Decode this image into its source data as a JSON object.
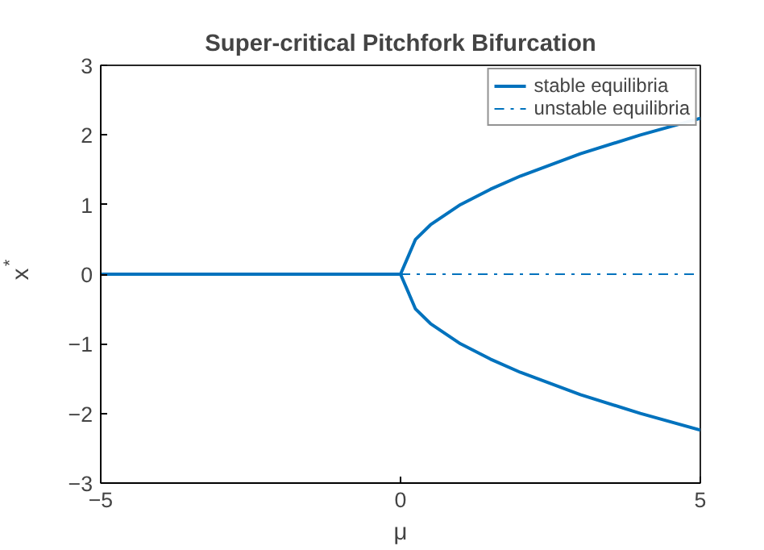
{
  "chart_data": {
    "type": "line",
    "title": "Super-critical Pitchfork Bifurcation",
    "xlabel": "μ",
    "ylabel": "x$^{*}$",
    "series": [
      {
        "name": "stable equilibria",
        "color": "#0072bd",
        "line_style": "solid",
        "x": [
          5,
          4,
          3,
          2,
          1.5,
          1,
          0.5,
          0.25,
          0,
          -5
        ],
        "values": [
          -2.24,
          -2,
          -1.73,
          -1.41,
          -1.22,
          -1,
          -0.71,
          -0.5,
          0,
          0
        ]
      },
      {
        "color": "#0072bd",
        "line_style": "solid",
        "x": [
          0,
          0.25,
          0.5,
          1,
          1.5,
          2,
          3,
          4,
          5
        ],
        "values": [
          0,
          0.5,
          0.71,
          1,
          1.22,
          1.41,
          1.73,
          2,
          2.24
        ]
      },
      {
        "name": "unstable equilibria",
        "color": "#0072bd",
        "line_style": "dashdot",
        "x": [
          0,
          5
        ],
        "values": [
          0,
          0
        ]
      }
    ],
    "xlim": [
      -5,
      5
    ],
    "xticks": [
      -5,
      0,
      5
    ],
    "ylim": [
      -3,
      3
    ],
    "yticks": [
      -3,
      -2,
      -1,
      0,
      1,
      2,
      3
    ],
    "grid": false,
    "legend": "top right"
  }
}
